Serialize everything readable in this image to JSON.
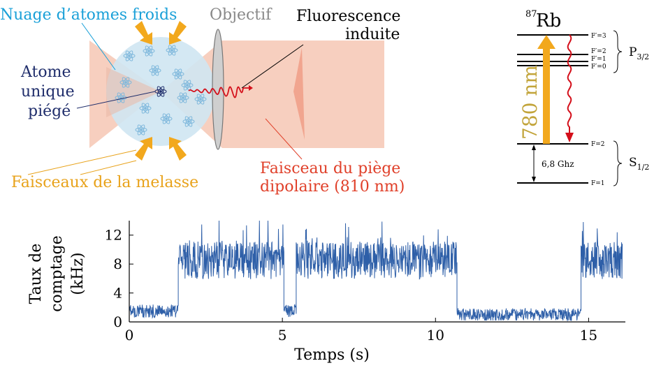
{
  "colors": {
    "cloud_label": "#1aa0d8",
    "objective_label": "#888888",
    "atom_label": "#1f2d6b",
    "beam_label": "#e8a21a",
    "trap_label": "#e0402a",
    "laser_780": "#c2a43a",
    "signal": "#2e5fa8",
    "fluorescence": "#d40f1a",
    "cloud": "#cfe6f2",
    "trap_beam": "#f6c7b4",
    "arrow_orange": "#f2a81d"
  },
  "setup": {
    "cloud_label": "Nuage d’atomes froids",
    "objective_label": "Objectif",
    "fluorescence_label_1": "Fluorescence",
    "fluorescence_label_2": "induite",
    "atom_label_1": "Atome",
    "atom_label_2": "unique",
    "atom_label_3": "piégé",
    "molasses_label": "Faisceaux de la melasse",
    "trap_label_1": "Faisceau du piège",
    "trap_label_2": "dipolaire (810 nm)"
  },
  "levels": {
    "isotope_mass": "87",
    "element": "Rb",
    "excited_name": "P",
    "excited_sub": "3/2",
    "ground_name": "S",
    "ground_sub": "1/2",
    "excited_levels": [
      "F′=3",
      "F′=2",
      "F′=1",
      "F′=0"
    ],
    "ground_levels": [
      "F=2",
      "F=1"
    ],
    "transition_label": "780 nm",
    "splitting_label": "6,8 Ghz"
  },
  "chart_data": {
    "type": "line",
    "xlabel": "Temps (s)",
    "ylabel_lines": [
      "Taux de",
      "comptage",
      "(kHz)"
    ],
    "xlim": [
      0,
      16.2
    ],
    "ylim": [
      0,
      14
    ],
    "xticks": [
      0,
      5,
      10,
      15
    ],
    "yticks": [
      0,
      4,
      8,
      12
    ],
    "segments": [
      {
        "x": [
          0.0,
          1.6
        ],
        "level": 1.5
      },
      {
        "x": [
          1.6,
          5.05
        ],
        "level": 8.5
      },
      {
        "x": [
          5.05,
          5.45
        ],
        "level": 1.5
      },
      {
        "x": [
          5.45,
          10.7
        ],
        "level": 8.5
      },
      {
        "x": [
          10.7,
          14.75
        ],
        "level": 1.0
      },
      {
        "x": [
          14.75,
          16.1
        ],
        "level": 8.5
      }
    ]
  }
}
